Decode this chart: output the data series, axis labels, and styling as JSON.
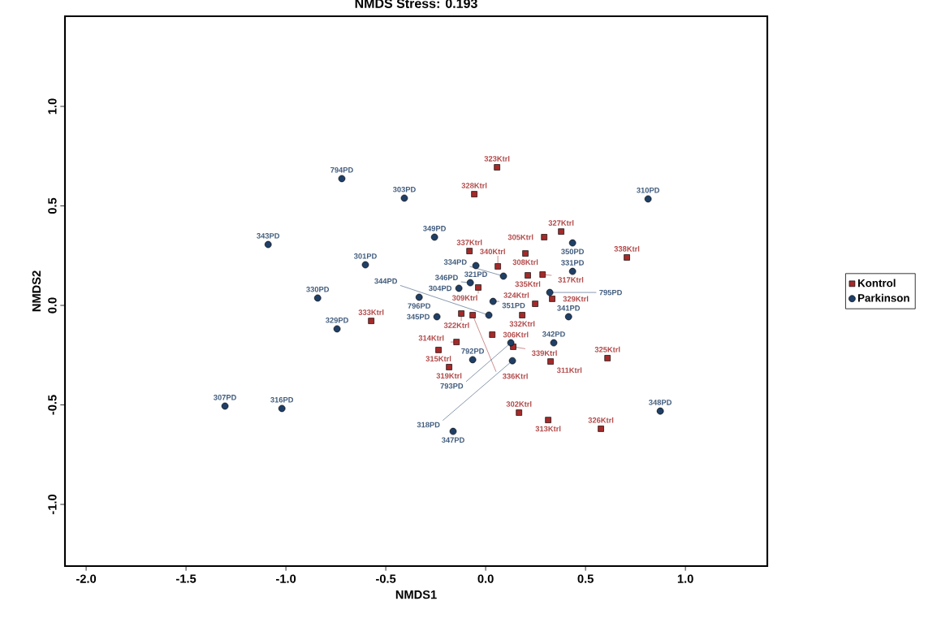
{
  "chart_data": {
    "type": "scatter",
    "title": "NMDS Stress: 0.193",
    "xlabel": "NMDS1",
    "ylabel": "NMDS2",
    "xlim": [
      -2.106,
      1.41
    ],
    "ylim": [
      -1.31,
      1.453
    ],
    "xticks": [
      {
        "value": -2,
        "label": "-2.0"
      },
      {
        "value": -1.5,
        "label": "-1.5"
      },
      {
        "value": -1,
        "label": "-1.0"
      },
      {
        "value": -0.5,
        "label": "-0.5"
      },
      {
        "value": 0,
        "label": "0.0"
      },
      {
        "value": 0.5,
        "label": "0.5"
      },
      {
        "value": 1,
        "label": "1.0"
      }
    ],
    "yticks": [
      {
        "value": -1,
        "label": "-1.0"
      },
      {
        "value": -0.5,
        "label": "-0.5"
      },
      {
        "value": 0,
        "label": "0.0"
      },
      {
        "value": 0.5,
        "label": "0.5"
      },
      {
        "value": 1,
        "label": "1.0"
      }
    ],
    "grid": false,
    "legend": "right",
    "series": [
      {
        "name": "Kontrol",
        "color": "#a52a2a",
        "marker": "square",
        "x": [
          0.057,
          -0.057,
          0.293,
          0.378,
          -0.081,
          0.199,
          0.061,
          0.211,
          0.285,
          -0.037,
          0.333,
          0.248,
          0.183,
          -0.122,
          -0.065,
          0.033,
          -0.146,
          -0.236,
          -0.183,
          0.138,
          0.325,
          0.61,
          0.707,
          -0.573,
          0.167,
          0.313,
          0.577
        ],
        "values": [
          0.694,
          0.559,
          0.343,
          0.371,
          0.273,
          0.261,
          0.196,
          0.151,
          0.155,
          0.09,
          0.033,
          0.008,
          -0.049,
          -0.041,
          -0.049,
          -0.147,
          -0.184,
          -0.224,
          -0.31,
          -0.208,
          -0.282,
          -0.265,
          0.241,
          -0.078,
          -0.539,
          -0.576,
          -0.62
        ]
      },
      {
        "name": "Parkinson",
        "color": "#1f3f66",
        "marker": "circle",
        "x": [
          -0.72,
          -0.407,
          -1.089,
          -0.602,
          -0.841,
          -0.744,
          -1.305,
          -1.02,
          0.813,
          0.435,
          0.435,
          0.415,
          0.874,
          -0.256,
          -0.049,
          0.089,
          -0.077,
          -0.134,
          -0.333,
          0.037,
          0.016,
          -0.244,
          0.341,
          0.126,
          -0.065,
          0.134,
          -0.163,
          0.321
        ],
        "values": [
          0.637,
          0.539,
          0.306,
          0.204,
          0.037,
          -0.118,
          -0.506,
          -0.518,
          0.535,
          0.314,
          0.171,
          -0.057,
          -0.531,
          0.343,
          0.2,
          0.147,
          0.114,
          0.086,
          0.041,
          0.02,
          -0.049,
          -0.057,
          -0.188,
          -0.188,
          -0.273,
          -0.278,
          -0.633,
          0.065
        ]
      }
    ],
    "annotations": [
      {
        "text": "323Ktrl",
        "x": 0.057,
        "y": 0.694
      },
      {
        "text": "328Ktrl",
        "x": -0.057,
        "y": 0.559
      },
      {
        "text": "305Ktrl",
        "x": 0.293,
        "y": 0.343
      },
      {
        "text": "327Ktrl",
        "x": 0.378,
        "y": 0.371
      },
      {
        "text": "337Ktrl",
        "x": -0.081,
        "y": 0.273
      },
      {
        "text": "308Ktrl",
        "x": 0.199,
        "y": 0.261
      },
      {
        "text": "340Ktrl",
        "x": 0.061,
        "y": 0.196
      },
      {
        "text": "335Ktrl",
        "x": 0.211,
        "y": 0.151
      },
      {
        "text": "317Ktrl",
        "x": 0.285,
        "y": 0.155
      },
      {
        "text": "309Ktrl",
        "x": -0.037,
        "y": 0.09
      },
      {
        "text": "329Ktrl",
        "x": 0.333,
        "y": 0.033
      },
      {
        "text": "324Ktrl",
        "x": 0.248,
        "y": 0.008
      },
      {
        "text": "332Ktrl",
        "x": 0.183,
        "y": -0.049
      },
      {
        "text": "322Ktrl",
        "x": -0.122,
        "y": -0.041
      },
      {
        "text": "336Ktrl",
        "x": -0.065,
        "y": -0.049
      },
      {
        "text": "306Ktrl",
        "x": 0.033,
        "y": -0.147
      },
      {
        "text": "314Ktrl",
        "x": -0.146,
        "y": -0.184
      },
      {
        "text": "315Ktrl",
        "x": -0.236,
        "y": -0.224
      },
      {
        "text": "319Ktrl",
        "x": -0.183,
        "y": -0.31
      },
      {
        "text": "339Ktrl",
        "x": 0.138,
        "y": -0.208
      },
      {
        "text": "311Ktrl",
        "x": 0.325,
        "y": -0.282
      },
      {
        "text": "325Ktrl",
        "x": 0.61,
        "y": -0.265
      },
      {
        "text": "338Ktrl",
        "x": 0.707,
        "y": 0.241
      },
      {
        "text": "333Ktrl",
        "x": -0.573,
        "y": -0.078
      },
      {
        "text": "302Ktrl",
        "x": 0.167,
        "y": -0.539
      },
      {
        "text": "313Ktrl",
        "x": 0.313,
        "y": -0.576
      },
      {
        "text": "326Ktrl",
        "x": 0.577,
        "y": -0.62
      },
      {
        "text": "794PD",
        "x": -0.72,
        "y": 0.637
      },
      {
        "text": "303PD",
        "x": -0.407,
        "y": 0.539
      },
      {
        "text": "343PD",
        "x": -1.089,
        "y": 0.306
      },
      {
        "text": "301PD",
        "x": -0.602,
        "y": 0.204
      },
      {
        "text": "330PD",
        "x": -0.841,
        "y": 0.037
      },
      {
        "text": "329PD",
        "x": -0.744,
        "y": -0.118
      },
      {
        "text": "307PD",
        "x": -1.305,
        "y": -0.506
      },
      {
        "text": "316PD",
        "x": -1.02,
        "y": -0.518
      },
      {
        "text": "310PD",
        "x": 0.813,
        "y": 0.535
      },
      {
        "text": "350PD",
        "x": 0.435,
        "y": 0.314
      },
      {
        "text": "331PD",
        "x": 0.435,
        "y": 0.171
      },
      {
        "text": "341PD",
        "x": 0.415,
        "y": -0.057
      },
      {
        "text": "348PD",
        "x": 0.874,
        "y": -0.531
      },
      {
        "text": "349PD",
        "x": -0.256,
        "y": 0.343
      },
      {
        "text": "321PD",
        "x": -0.049,
        "y": 0.2
      },
      {
        "text": "334PD",
        "x": 0.089,
        "y": 0.147
      },
      {
        "text": "346PD",
        "x": -0.077,
        "y": 0.114
      },
      {
        "text": "304PD",
        "x": -0.134,
        "y": 0.086
      },
      {
        "text": "796PD",
        "x": -0.333,
        "y": 0.041
      },
      {
        "text": "351PD",
        "x": 0.037,
        "y": 0.02
      },
      {
        "text": "344PD",
        "x": 0.016,
        "y": -0.049
      },
      {
        "text": "345PD",
        "x": -0.244,
        "y": -0.057
      },
      {
        "text": "342PD",
        "x": 0.341,
        "y": -0.188
      },
      {
        "text": "793PD",
        "x": 0.126,
        "y": -0.188
      },
      {
        "text": "792PD",
        "x": -0.065,
        "y": -0.273
      },
      {
        "text": "318PD",
        "x": 0.134,
        "y": -0.278
      },
      {
        "text": "347PD",
        "x": -0.163,
        "y": -0.633
      },
      {
        "text": "795PD",
        "x": 0.321,
        "y": 0.065
      }
    ]
  }
}
